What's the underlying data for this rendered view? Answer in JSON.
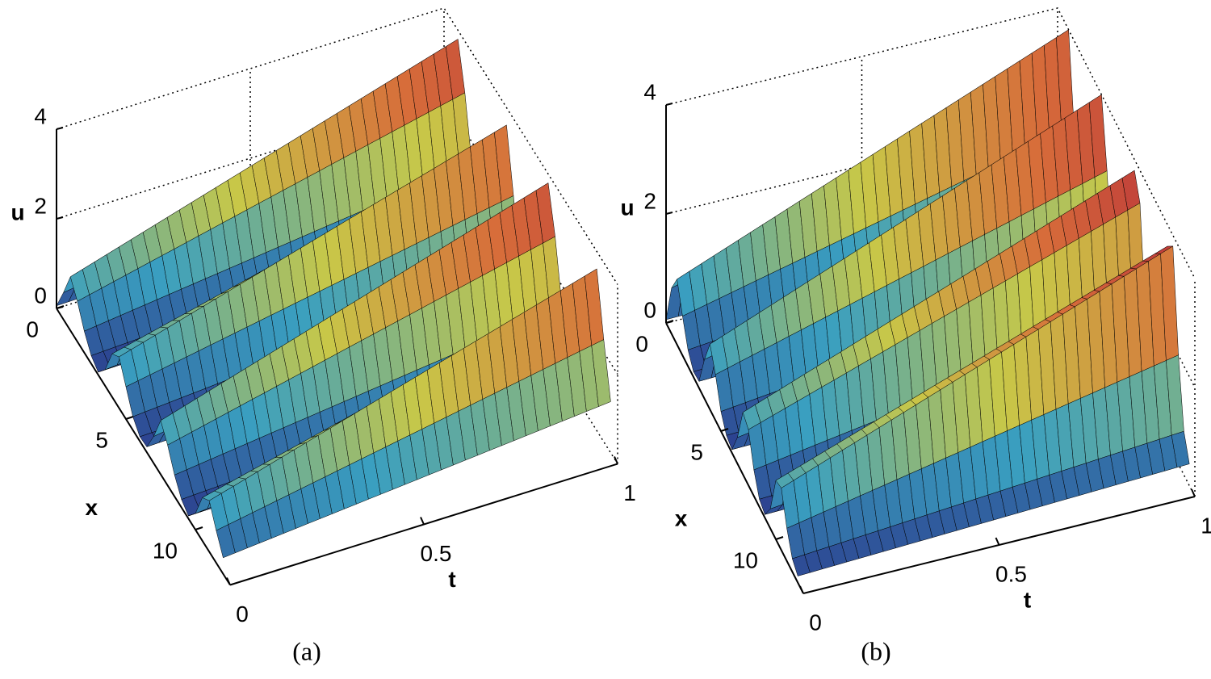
{
  "chart_data": [
    {
      "type": "surface",
      "caption": "(a)",
      "xlabel": "x",
      "ylabel": "t",
      "zlabel": "u",
      "x": [
        0,
        0.5,
        1,
        1.5,
        2,
        2.5,
        3,
        3.5,
        4,
        4.5,
        5,
        5.5,
        6,
        6.5,
        7,
        7.5,
        8,
        8.5,
        9,
        9.5,
        10,
        10.5,
        11,
        11.5,
        12
      ],
      "t": [
        0,
        0.5,
        1
      ],
      "z": [
        [
          0.06,
          0.6,
          1.2,
          0.9,
          0.48,
          0.18,
          0.06,
          0.36,
          0.96,
          1.14,
          0.72,
          0.3,
          0.1,
          0.12,
          0.6,
          1.2,
          0.9,
          0.48,
          0.18,
          0.06,
          0.36,
          0.96,
          1.14,
          0.72,
          0.36
        ],
        [
          0.13,
          1.25,
          2.5,
          1.88,
          1,
          0.38,
          0.13,
          0.75,
          2,
          2.38,
          1.5,
          0.63,
          0.2,
          0.25,
          1.25,
          2.5,
          1.88,
          1,
          0.38,
          0.13,
          0.75,
          2,
          2.38,
          1.5,
          0.75
        ],
        [
          0.19,
          1.9,
          3.8,
          2.85,
          1.52,
          0.57,
          0.19,
          1.14,
          3.04,
          3.61,
          2.28,
          0.95,
          0.3,
          0.38,
          1.9,
          3.8,
          2.85,
          1.52,
          0.57,
          0.19,
          1.14,
          3.04,
          3.61,
          2.28,
          1.14
        ]
      ],
      "xlim": [
        0,
        12.5
      ],
      "ylim": [
        0,
        1
      ],
      "zlim": [
        0,
        4
      ],
      "xticks": [
        0,
        5,
        10
      ],
      "yticks": [
        0,
        0.5,
        1
      ],
      "zticks": [
        0,
        2,
        4
      ],
      "colormap": [
        "#2b3a8c",
        "#3a9fc0",
        "#c8c848",
        "#d76d3a",
        "#b5283a"
      ]
    },
    {
      "type": "surface",
      "caption": "(b)",
      "xlabel": "x",
      "ylabel": "t",
      "zlabel": "u",
      "x": [
        0,
        0.5,
        1,
        1.5,
        2,
        2.5,
        3,
        3.5,
        4,
        4.5,
        5,
        5.5,
        6,
        6.5,
        7,
        7.5,
        8,
        8.5,
        9,
        9.5,
        10,
        10.5,
        11,
        11.5,
        12
      ],
      "t": [
        0,
        0.5,
        1
      ],
      "z": [
        [
          0.06,
          0.84,
          1.2,
          0.72,
          0.3,
          0.1,
          0.12,
          0.72,
          1.2,
          0.84,
          0.36,
          0.12,
          0.06,
          0.48,
          1.14,
          1.02,
          0.48,
          0.14,
          0.06,
          0.36,
          1.08,
          1.14,
          0.6,
          0.24,
          0.12
        ],
        [
          0.13,
          1.82,
          2.6,
          1.56,
          0.65,
          0.21,
          0.26,
          1.56,
          2.6,
          1.82,
          0.78,
          0.26,
          0.13,
          1.04,
          2.47,
          2.21,
          1.04,
          0.31,
          0.13,
          0.78,
          2.34,
          2.47,
          1.3,
          0.52,
          0.26
        ],
        [
          0.2,
          2.8,
          4,
          2.4,
          1,
          0.32,
          0.4,
          2.4,
          4,
          2.8,
          1.2,
          0.4,
          0.2,
          1.6,
          3.8,
          3.4,
          1.6,
          0.48,
          0.2,
          1.2,
          3.6,
          3.8,
          2,
          0.8,
          0.4
        ]
      ],
      "xlim": [
        0,
        12.5
      ],
      "ylim": [
        0,
        1
      ],
      "zlim": [
        0,
        4
      ],
      "xticks": [
        0,
        5,
        10
      ],
      "yticks": [
        0,
        0.5,
        1
      ],
      "zticks": [
        0,
        2,
        4
      ],
      "colormap": [
        "#2b3a8c",
        "#3a9fc0",
        "#c8c848",
        "#d76d3a",
        "#b5283a"
      ]
    }
  ]
}
